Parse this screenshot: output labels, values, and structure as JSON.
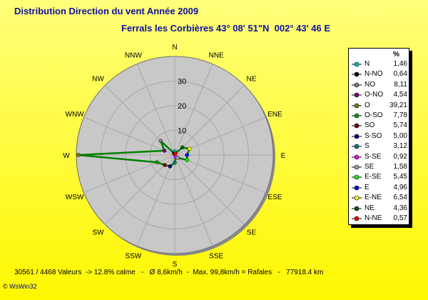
{
  "title": "Distribution Direction du vent   Année 2009",
  "subtitle": "Ferrals les Corbières 43° 08' 51\"N  002° 43' 46 E",
  "footer": "30561 / 4468 Valeurs  -> 12.8% calme   -   Ø 8,6km/h  -  Max. 99,8km/h = Rafales   -   77918.4 km",
  "credit": "© WsWin32",
  "legend_header": "%",
  "colors": {
    "polygon": "#008000",
    "disc": "#c8c8c8",
    "grid": "#a8a8a8"
  },
  "chart_data": {
    "type": "radar",
    "title": "Distribution Direction du vent   Année 2009",
    "rlim": [
      0,
      40
    ],
    "rings": [
      10,
      20,
      30
    ],
    "ring_labels": [
      "10",
      "20",
      "30"
    ],
    "directions": [
      "N",
      "NNE",
      "NE",
      "ENE",
      "E",
      "ESE",
      "SE",
      "SSE",
      "S",
      "SSW",
      "SW",
      "WSW",
      "W",
      "WNW",
      "NW",
      "NNW"
    ],
    "series": [
      {
        "name": "N",
        "color": "#00c0c0",
        "value": 1.46,
        "dir": "N"
      },
      {
        "name": "N-NO",
        "color": "#000000",
        "value": 0.64,
        "dir": "NNW"
      },
      {
        "name": "NO",
        "color": "#808080",
        "value": 8.11,
        "dir": "NW"
      },
      {
        "name": "O-NO",
        "color": "#800080",
        "value": 4.54,
        "dir": "WNW"
      },
      {
        "name": "O",
        "color": "#808000",
        "value": 39.21,
        "dir": "W"
      },
      {
        "name": "O-SO",
        "color": "#00a000",
        "value": 7.78,
        "dir": "WSW"
      },
      {
        "name": "SO",
        "color": "#800000",
        "value": 5.74,
        "dir": "SW"
      },
      {
        "name": "S-SO",
        "color": "#000080",
        "value": 5.0,
        "dir": "SSW"
      },
      {
        "name": "S",
        "color": "#008080",
        "value": 3.12,
        "dir": "S"
      },
      {
        "name": "S-SE",
        "color": "#ff00ff",
        "value": 0.92,
        "dir": "SSE"
      },
      {
        "name": "SE",
        "color": "#a0a0a0",
        "value": 1.58,
        "dir": "SE"
      },
      {
        "name": "E-SE",
        "color": "#00ff00",
        "value": 5.45,
        "dir": "ESE"
      },
      {
        "name": "E",
        "color": "#0000ff",
        "value": 4.96,
        "dir": "E"
      },
      {
        "name": "E-NE",
        "color": "#ffff00",
        "value": 6.54,
        "dir": "ENE"
      },
      {
        "name": "NE",
        "color": "#006000",
        "value": 4.36,
        "dir": "NE"
      },
      {
        "name": "N-NE",
        "color": "#ff0000",
        "value": 0.57,
        "dir": "NNE"
      }
    ],
    "legend_values": [
      "1,46",
      "0,64",
      "8,11",
      "4,54",
      "39,21",
      "7,78",
      "5,74",
      "5,00",
      "3,12",
      "0,92",
      "1,58",
      "5,45",
      "4,96",
      "6,54",
      "4,36",
      "0,57"
    ]
  }
}
